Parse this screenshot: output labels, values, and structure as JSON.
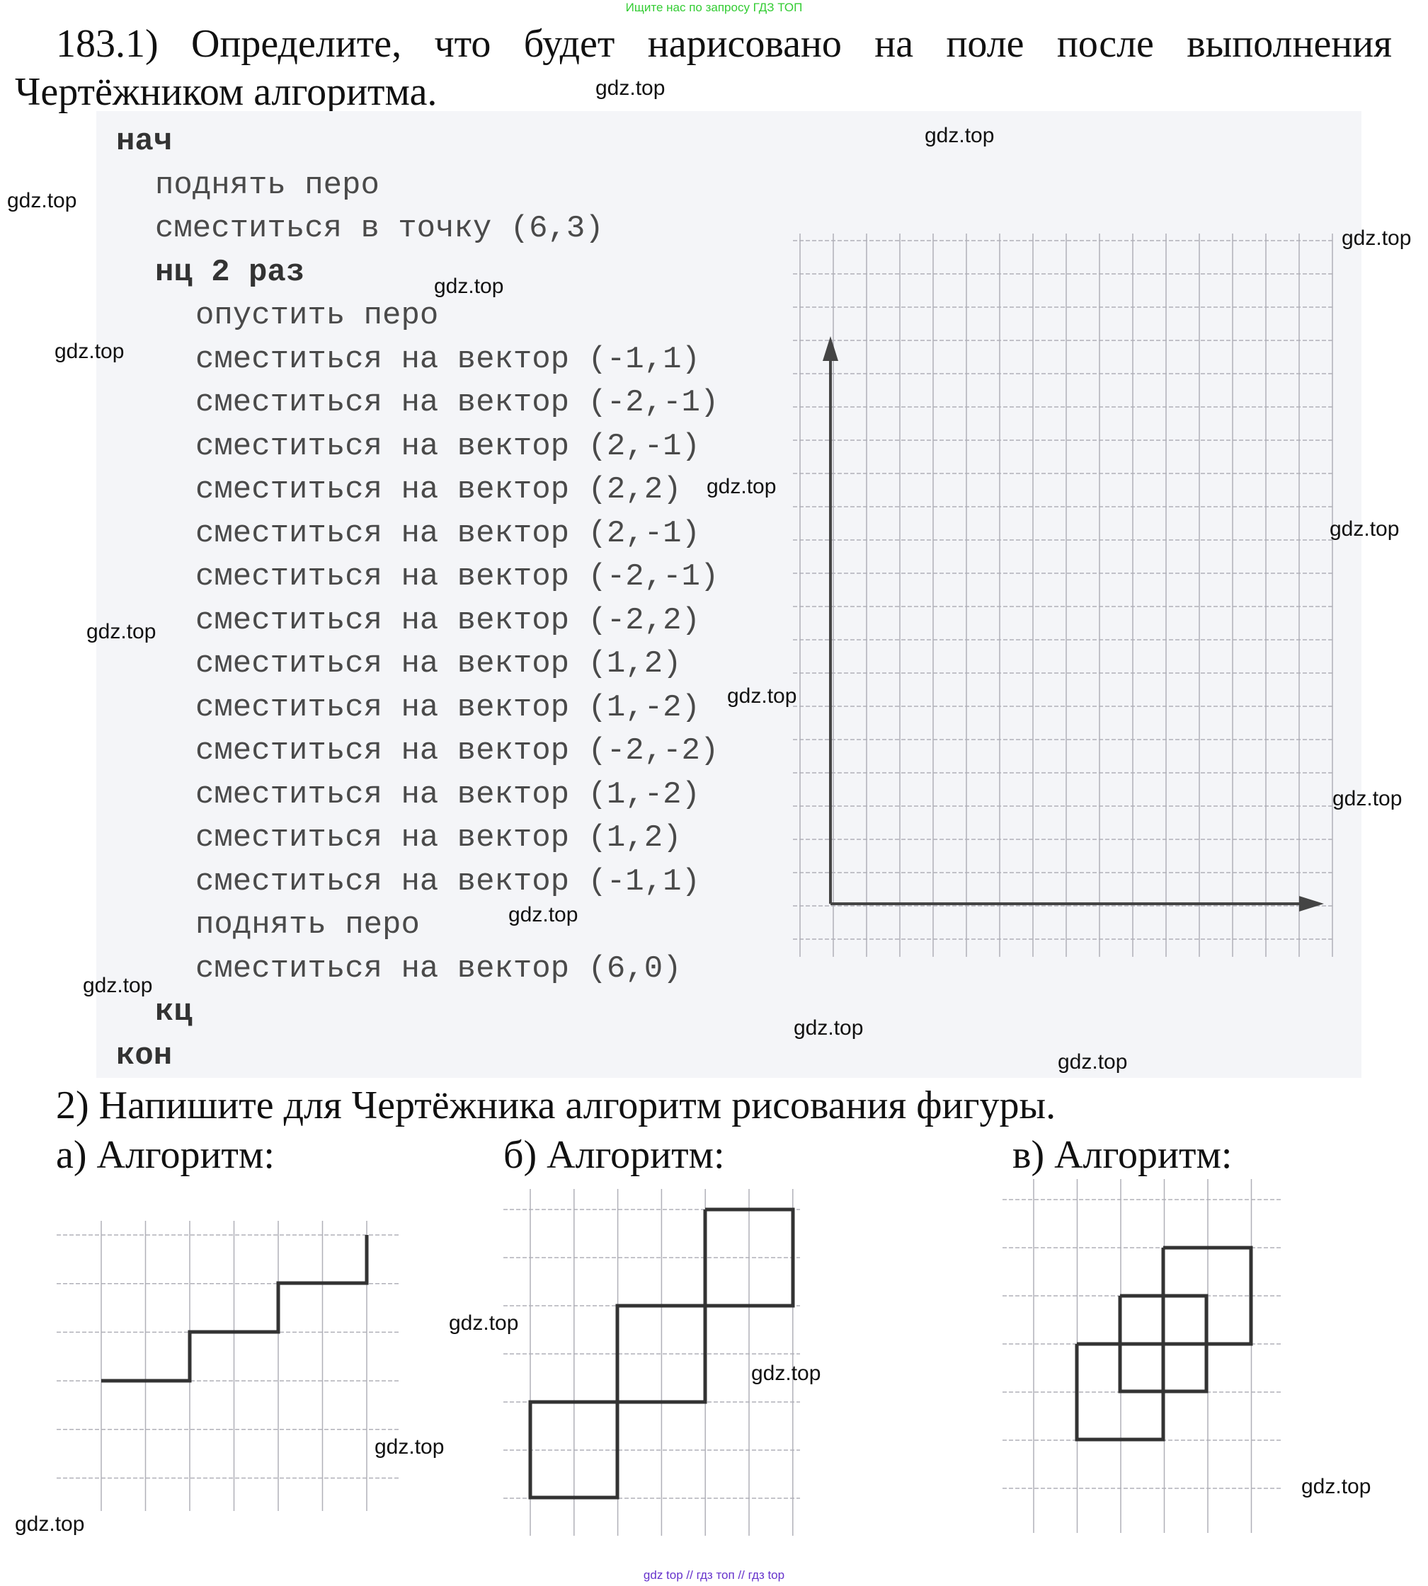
{
  "header_note": "Ищите нас по запросу ГДЗ ТОП",
  "footer_note": "gdz top // гдз топ // гдз top",
  "task": {
    "line1": "183.1) Определите, что будет нарисовано на поле после выполнения",
    "line2": "Чертёжником алгоритма."
  },
  "code": [
    {
      "text": "нач",
      "level": 0,
      "bold": true
    },
    {
      "text": "поднять перо",
      "level": 1
    },
    {
      "text": "сместиться в точку (6,3)",
      "level": 1
    },
    {
      "text": "нц 2 раз",
      "level": 1,
      "bold": true
    },
    {
      "text": "опустить перо",
      "level": 2
    },
    {
      "text": "сместиться на вектор (-1,1)",
      "level": 2
    },
    {
      "text": "сместиться на вектор (-2,-1)",
      "level": 2
    },
    {
      "text": "сместиться на вектор (2,-1)",
      "level": 2
    },
    {
      "text": "сместиться на вектор (2,2)",
      "level": 2
    },
    {
      "text": "сместиться на вектор (2,-1)",
      "level": 2
    },
    {
      "text": "сместиться на вектор (-2,-1)",
      "level": 2
    },
    {
      "text": "сместиться на вектор (-2,2)",
      "level": 2
    },
    {
      "text": "сместиться на вектор (1,2)",
      "level": 2
    },
    {
      "text": "сместиться на вектор (1,-2)",
      "level": 2
    },
    {
      "text": "сместиться на вектор (-2,-2)",
      "level": 2
    },
    {
      "text": "сместиться на вектор (1,-2)",
      "level": 2
    },
    {
      "text": "сместиться на вектор (1,2)",
      "level": 2
    },
    {
      "text": "сместиться на вектор (-1,1)",
      "level": 2
    },
    {
      "text": "поднять перо",
      "level": 2
    },
    {
      "text": "сместиться на вектор (6,0)",
      "level": 2
    },
    {
      "text": "кц",
      "level": 1,
      "bold": true
    },
    {
      "text": "кон",
      "level": 0,
      "bold": true
    }
  ],
  "task2": {
    "title": "2) Напишите для Чертёжника алгоритм рисования фигуры.",
    "a": "а) Алгоритм:",
    "b": "б) Алгоритм:",
    "c": "в) Алгоритм:"
  },
  "watermark": "gdz.top",
  "colors": {
    "grid": "#b0b0b8",
    "line": "#333333",
    "axis": "#444444"
  }
}
